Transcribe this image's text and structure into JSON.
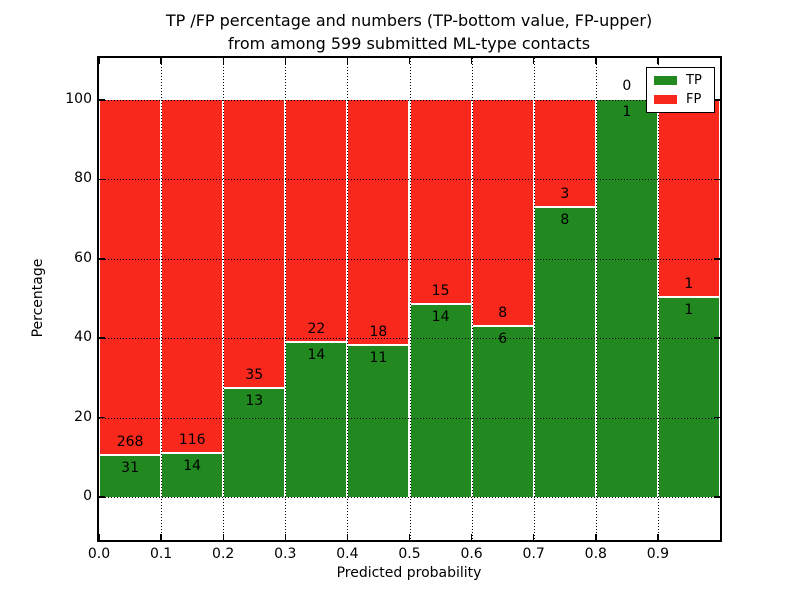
{
  "title": {
    "line1": "TP /FP percentage and numbers (TP-bottom value, FP-upper)",
    "line2": "from among 599 submitted ML-type contacts"
  },
  "axes": {
    "xlabel": "Predicted probability",
    "ylabel": "Percentage",
    "x_tick_labels": [
      "0.0",
      "0.1",
      "0.2",
      "0.3",
      "0.4",
      "0.5",
      "0.6",
      "0.7",
      "0.8",
      "0.9"
    ],
    "y_tick_labels": [
      "0",
      "20",
      "40",
      "60",
      "80",
      "100"
    ]
  },
  "legend": {
    "items": [
      {
        "label": "TP",
        "color": "#21891f"
      },
      {
        "label": "FP",
        "color": "#f8281d"
      }
    ]
  },
  "colors": {
    "tp": "#21891f",
    "fp": "#f8281d",
    "bar_edge": "#ffffff",
    "grid": "#000000",
    "axis": "#000000",
    "background": "#ffffff"
  },
  "chart_data": {
    "type": "bar",
    "stacked": true,
    "percent_normalized": true,
    "title": "TP /FP percentage and numbers (TP-bottom value, FP-upper) from among 599 submitted ML-type contacts",
    "xlabel": "Predicted probability",
    "ylabel": "Percentage",
    "total_contacts": 599,
    "categories": [
      "0.0-0.1",
      "0.1-0.2",
      "0.2-0.3",
      "0.3-0.4",
      "0.4-0.5",
      "0.5-0.6",
      "0.6-0.7",
      "0.7-0.8",
      "0.8-0.9",
      "0.9-1.0"
    ],
    "bin_starts": [
      0.0,
      0.1,
      0.2,
      0.3,
      0.4,
      0.5,
      0.6,
      0.7,
      0.8,
      0.9
    ],
    "series": [
      {
        "name": "TP",
        "color": "#21891f",
        "counts": [
          31,
          14,
          13,
          14,
          11,
          14,
          6,
          8,
          1,
          1
        ]
      },
      {
        "name": "FP",
        "color": "#f8281d",
        "counts": [
          268,
          116,
          35,
          22,
          18,
          15,
          8,
          3,
          0,
          1
        ]
      }
    ],
    "tp_percent": [
      10.4,
      10.8,
      27.1,
      38.9,
      37.9,
      48.3,
      42.9,
      72.7,
      100.0,
      50.0
    ],
    "x_ticks": [
      0.0,
      0.1,
      0.2,
      0.3,
      0.4,
      0.5,
      0.6,
      0.7,
      0.8,
      0.9
    ],
    "y_ticks": [
      0,
      20,
      40,
      60,
      80,
      100
    ],
    "xlim": [
      0.0,
      1.0
    ],
    "ylim": [
      -11,
      110.5
    ],
    "grid": "dotted",
    "legend_position": "upper right",
    "annotation_rule": "FP count above green/red boundary, TP count below"
  }
}
